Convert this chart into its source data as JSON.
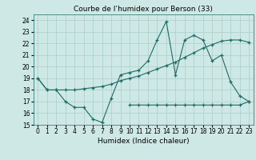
{
  "title": "Courbe de l’humidex pour Berson (33)",
  "xlabel": "Humidex (Indice chaleur)",
  "xlim": [
    -0.5,
    23.5
  ],
  "ylim": [
    15,
    24.5
  ],
  "yticks": [
    15,
    16,
    17,
    18,
    19,
    20,
    21,
    22,
    23,
    24
  ],
  "xticks": [
    0,
    1,
    2,
    3,
    4,
    5,
    6,
    7,
    8,
    9,
    10,
    11,
    12,
    13,
    14,
    15,
    16,
    17,
    18,
    19,
    20,
    21,
    22,
    23
  ],
  "bg_color": "#cde8e5",
  "line_color": "#1e6b65",
  "grid_color": "#aacfcc",
  "line1": [
    19,
    18,
    18,
    17,
    16.5,
    16.5,
    15.5,
    15.2,
    17.3,
    19.3,
    19.5,
    19.7,
    20.5,
    22.3,
    23.9,
    19.3,
    22.3,
    22.7,
    22.3,
    20.5,
    21.0,
    18.7,
    17.5,
    17.0
  ],
  "line2": [
    19,
    18,
    18,
    18,
    18,
    18.1,
    18.2,
    18.3,
    18.5,
    18.8,
    19.0,
    19.2,
    19.5,
    19.8,
    20.1,
    20.4,
    20.8,
    21.2,
    21.6,
    21.9,
    22.2,
    22.3,
    22.3,
    22.1
  ],
  "line3_x": [
    10,
    11,
    12,
    13,
    14,
    15,
    16,
    17,
    18,
    19,
    20,
    21,
    22,
    23
  ],
  "line3_y": [
    16.7,
    16.7,
    16.7,
    16.7,
    16.7,
    16.7,
    16.7,
    16.7,
    16.7,
    16.7,
    16.7,
    16.7,
    16.7,
    17.0
  ],
  "title_fontsize": 6.5,
  "tick_fontsize": 5.5,
  "label_fontsize": 6.5
}
